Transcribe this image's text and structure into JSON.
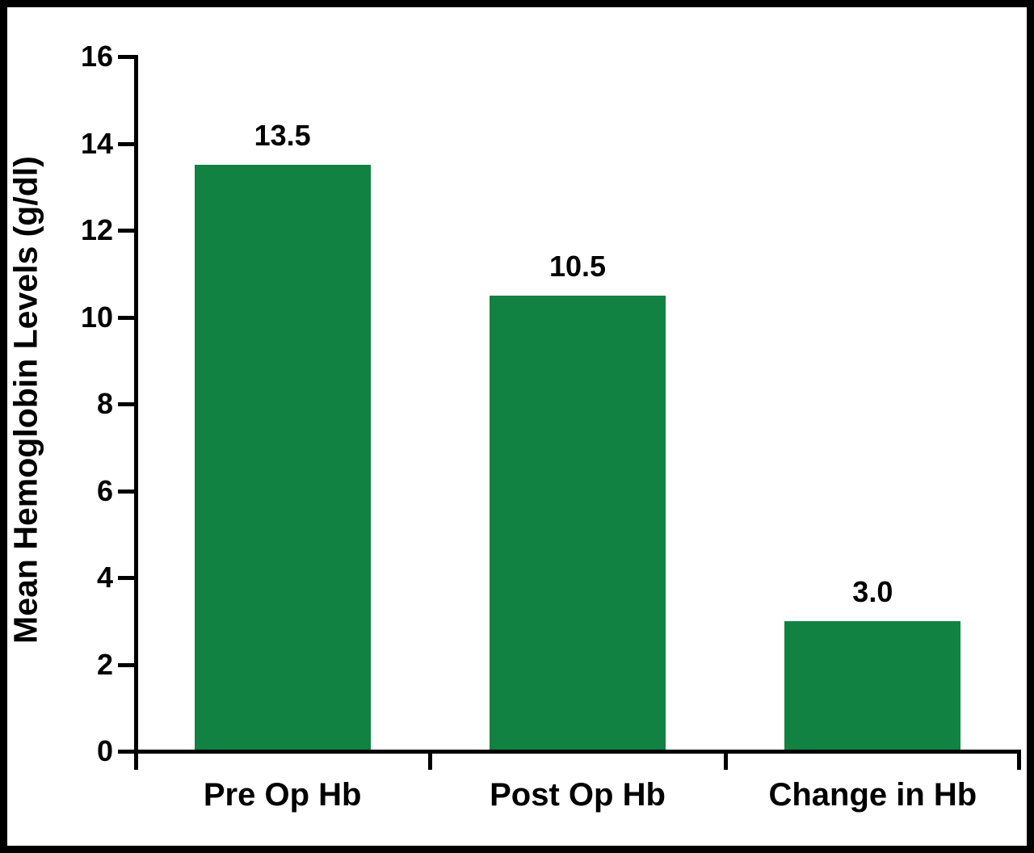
{
  "chart_data": {
    "type": "bar",
    "title": "",
    "categories": [
      "Pre Op Hb",
      "Post Op Hb",
      "Change in Hb"
    ],
    "values": [
      13.5,
      10.5,
      3.0
    ],
    "value_labels": [
      "13.5",
      "10.5",
      "3.0"
    ],
    "series": [
      {
        "name": "Mean Hemoglobin Levels",
        "values": [
          13.5,
          10.5,
          3.0
        ]
      }
    ],
    "xlabel": "",
    "ylabel": "Mean Hemoglobin Levels (g/dl)",
    "ylim": [
      0,
      16
    ],
    "yticks": [
      0,
      2,
      4,
      6,
      8,
      10,
      12,
      14,
      16
    ],
    "grid": false,
    "legend": false,
    "bar_color": "#128242",
    "axis_color": "#000000",
    "text_color": "#000000",
    "background_color": "#ffffff",
    "border_color": "#000000"
  }
}
